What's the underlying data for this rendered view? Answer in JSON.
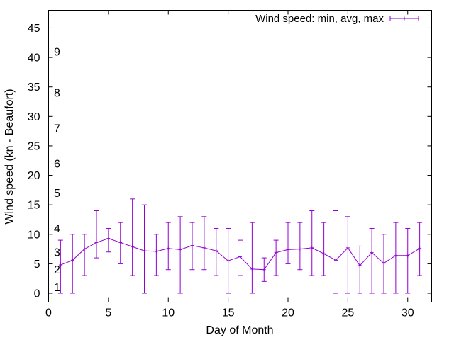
{
  "chart_data": {
    "type": "line",
    "xlabel": "Day of Month",
    "ylabel": "Wind speed (kn - Beaufort)",
    "xlim": [
      0,
      32
    ],
    "ylim": [
      -1.5,
      48
    ],
    "xticks": [
      0,
      5,
      10,
      15,
      20,
      25,
      30
    ],
    "yticks": [
      0,
      5,
      10,
      15,
      20,
      25,
      30,
      35,
      40,
      45
    ],
    "grid": false,
    "legend_position": "top-right",
    "series": [
      {
        "name": "Wind speed: min, avg, max",
        "color": "#9400D3",
        "style": "errorbars-with-line",
        "x": [
          1,
          2,
          3,
          4,
          5,
          6,
          7,
          8,
          9,
          10,
          11,
          12,
          13,
          14,
          15,
          16,
          17,
          18,
          19,
          20,
          21,
          22,
          23,
          24,
          25,
          26,
          27,
          28,
          29,
          30,
          31
        ],
        "min": [
          0,
          0,
          3,
          6,
          7,
          5,
          3,
          0,
          3,
          4,
          0,
          4,
          4,
          3,
          0,
          3,
          0,
          2,
          3,
          5,
          4,
          3,
          3,
          0,
          0,
          0,
          0,
          0,
          0,
          0,
          3
        ],
        "avg": [
          4.8,
          5.6,
          7.5,
          8.6,
          9.3,
          8.6,
          7.9,
          7.2,
          7.1,
          7.6,
          7.4,
          8.1,
          7.7,
          7.2,
          5.5,
          6.2,
          4.1,
          4.0,
          6.9,
          7.4,
          7.5,
          7.7,
          6.7,
          5.6,
          7.7,
          4.7,
          6.9,
          5.1,
          6.4,
          6.4,
          7.6
        ],
        "max": [
          9,
          10,
          10,
          14,
          11,
          12,
          16,
          15,
          10,
          12,
          13,
          12,
          13,
          11,
          11,
          9,
          12,
          6,
          9,
          12,
          12,
          14,
          12,
          14,
          13,
          8,
          11,
          10,
          12,
          11,
          12
        ]
      }
    ],
    "beaufort_labels": [
      {
        "label": "1",
        "y": 1
      },
      {
        "label": "2",
        "y": 4
      },
      {
        "label": "3",
        "y": 7
      },
      {
        "label": "4",
        "y": 11
      },
      {
        "label": "5",
        "y": 17
      },
      {
        "label": "6",
        "y": 22
      },
      {
        "label": "7",
        "y": 28
      },
      {
        "label": "8",
        "y": 34
      },
      {
        "label": "9",
        "y": 41
      }
    ]
  }
}
